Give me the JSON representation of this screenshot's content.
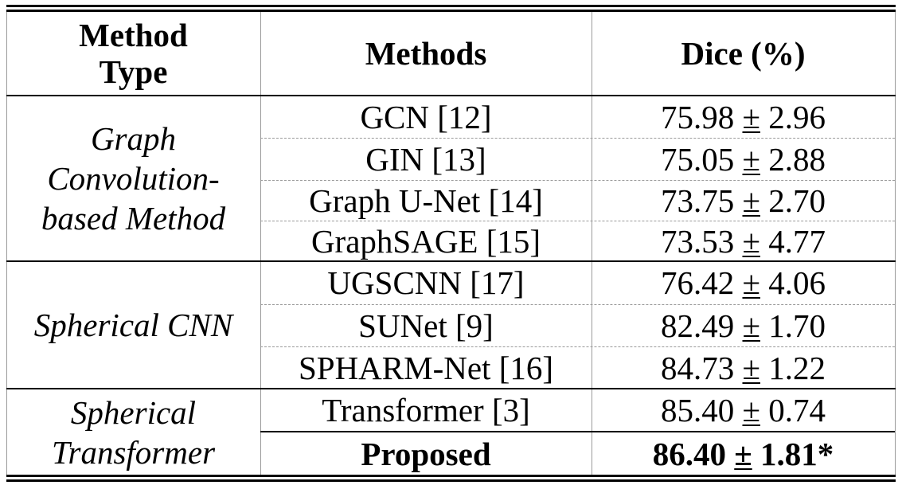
{
  "header": {
    "method_type_line1": "Method",
    "method_type_line2": "Type",
    "methods": "Methods",
    "dice": "Dice (%)"
  },
  "pm_symbol": "±",
  "groups": [
    {
      "type_lines": [
        "Graph",
        "Convolution-",
        "based Method"
      ],
      "rows": [
        {
          "method": "GCN [12]",
          "mean": "75.98",
          "std": "2.96"
        },
        {
          "method": "GIN [13]",
          "mean": "75.05",
          "std": "2.88"
        },
        {
          "method": "Graph U-Net [14]",
          "mean": "73.75",
          "std": "2.70"
        },
        {
          "method": "GraphSAGE [15]",
          "mean": "73.53",
          "std": "4.77"
        }
      ]
    },
    {
      "type_lines": [
        "Spherical CNN"
      ],
      "rows": [
        {
          "method": "UGSCNN [17]",
          "mean": "76.42",
          "std": "4.06"
        },
        {
          "method": "SUNet [9]",
          "mean": "82.49",
          "std": "1.70"
        },
        {
          "method": "SPHARM-Net [16]",
          "mean": "84.73",
          "std": "1.22"
        }
      ]
    },
    {
      "type_lines": [
        "Spherical",
        "Transformer"
      ],
      "rows": [
        {
          "method": "Transformer [3]",
          "mean": "85.40",
          "std": "0.74"
        },
        {
          "method": "Proposed",
          "mean": "86.40",
          "std": "1.81*"
        }
      ]
    }
  ]
}
